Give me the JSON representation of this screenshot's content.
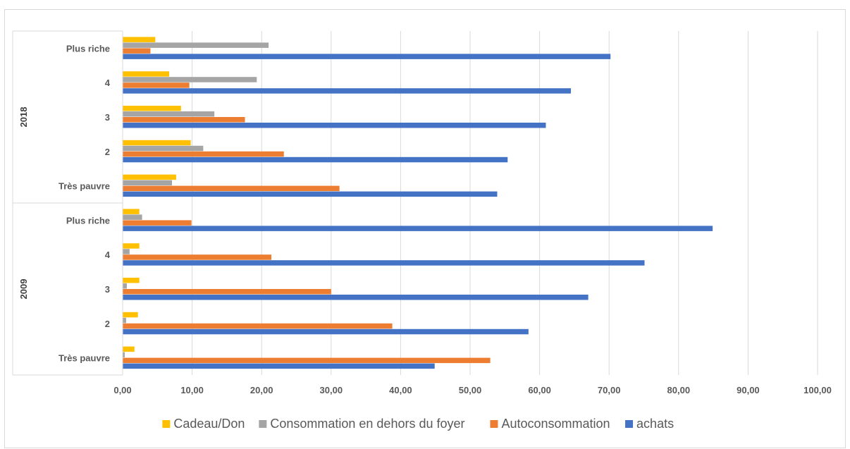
{
  "chart_data": {
    "type": "bar",
    "orientation": "horizontal",
    "groups": [
      {
        "name": "2009",
        "categories": [
          "Très pauvre",
          "2",
          "3",
          "4",
          "Plus riche"
        ]
      },
      {
        "name": "2018",
        "categories": [
          "Très pauvre",
          "2",
          "3",
          "4",
          "Plus riche"
        ]
      }
    ],
    "series": [
      {
        "name": "Cadeau/Don",
        "color": "#FFC000",
        "values": [
          1.7,
          2.2,
          2.4,
          2.4,
          2.4,
          7.7,
          9.8,
          8.4,
          6.7,
          4.7
        ]
      },
      {
        "name": "Consommation en dehors du foyer",
        "color": "#A5A5A5",
        "values": [
          0.3,
          0.5,
          0.6,
          1.0,
          2.8,
          7.1,
          11.6,
          13.2,
          19.3,
          21.0
        ]
      },
      {
        "name": "Autoconsommation",
        "color": "#ED7D31",
        "values": [
          52.9,
          38.8,
          30.0,
          21.4,
          9.9,
          31.2,
          23.2,
          17.6,
          9.6,
          4.0
        ]
      },
      {
        "name": "achats",
        "color": "#4472C4",
        "values": [
          44.9,
          58.4,
          67.0,
          75.1,
          84.9,
          53.9,
          55.4,
          60.9,
          64.5,
          70.2
        ]
      }
    ],
    "xlim": [
      0,
      100
    ],
    "x_ticks": [
      "0,00",
      "10,00",
      "20,00",
      "30,00",
      "40,00",
      "50,00",
      "60,00",
      "70,00",
      "80,00",
      "90,00",
      "100,00"
    ],
    "grid": true,
    "legend": "bottom",
    "title": "",
    "xlabel": "",
    "ylabel": ""
  }
}
